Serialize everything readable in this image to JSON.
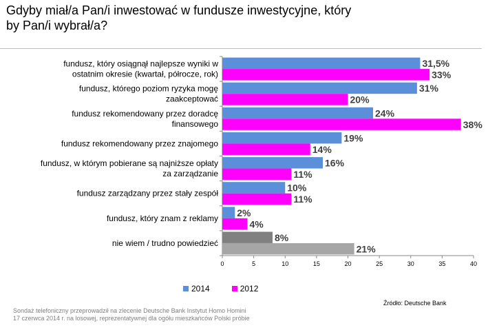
{
  "chart_data": {
    "type": "bar",
    "orientation": "horizontal",
    "title_lines": [
      "Gdyby miał/a Pan/i inwestować w fundusze  inwestycyjne, który",
      "by Pan/i wybrał/a?"
    ],
    "categories": [
      {
        "lines": [
          "fundusz, który osiągnął najlepsze wyniki  w",
          "ostatnim okresie (kwartał, półrocze, rok)"
        ]
      },
      {
        "lines": [
          "fundusz, którego poziom ryzyka mogę",
          "zaakceptować"
        ]
      },
      {
        "lines": [
          "fundusz rekomendowany przez doradcę",
          "finansowego"
        ]
      },
      {
        "lines": [
          "fundusz rekomendowany przez znajomego"
        ]
      },
      {
        "lines": [
          "fundusz, w którym pobierane są najniższe opłaty",
          "za zarządzanie"
        ]
      },
      {
        "lines": [
          "fundusz zarządzany przez stały zespół"
        ]
      },
      {
        "lines": [
          "fundusz, który znam z reklamy"
        ]
      },
      {
        "lines": [
          "nie wiem / trudno powiedzieć"
        ]
      }
    ],
    "series": [
      {
        "name": "2014",
        "color": "#5b8fd9",
        "last_color": "#808080",
        "values": [
          31.5,
          31,
          24,
          19,
          16,
          10,
          2,
          8
        ],
        "labels": [
          "31,5%",
          "31%",
          "24%",
          "19%",
          "16%",
          "10%",
          "2%",
          "8%"
        ]
      },
      {
        "name": "2012",
        "color": "#ff00ff",
        "last_color": "#a6a6a6",
        "values": [
          33,
          20,
          38,
          14,
          11,
          11,
          4,
          21
        ],
        "labels": [
          "33%",
          "20%",
          "38%",
          "14%",
          "11%",
          "11%",
          "4%",
          "21%"
        ]
      }
    ],
    "xlim": [
      0,
      40
    ],
    "xticks": [
      0,
      5,
      10,
      15,
      20,
      25,
      30,
      35,
      40
    ],
    "grid": false,
    "legend": "bottom"
  },
  "source": "Źródło: Deutsche Bank",
  "footnote_lines": [
    "Sondaż telefoniczny przeprowadził na zlecenie Deutsche Bank Instytut Homo Homini",
    "17 czerwca 2014 r. na losowej, reprezentatywnej dla ogółu mieszkańców Polski próbie"
  ]
}
